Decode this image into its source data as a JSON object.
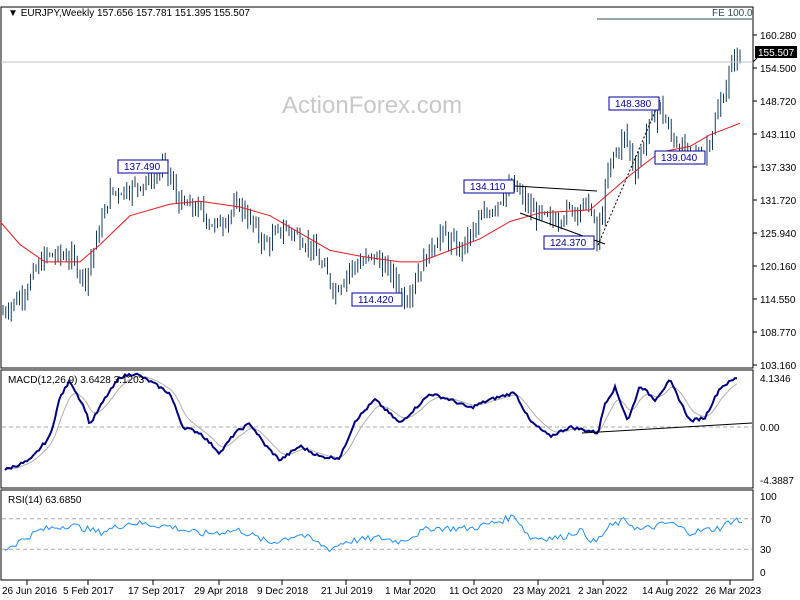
{
  "header": {
    "symbol": "EURJPY,Weekly",
    "ohlc": "157.656 157.781 151.395 155.507",
    "watermark": "ActionForex.com"
  },
  "chart_data": [
    {
      "type": "line",
      "title": "EURJPY Weekly",
      "subtitle": "157.656 157.781 151.395 155.507",
      "y_ticks": [
        "160.280",
        "154.500",
        "148.720",
        "143.110",
        "137.330",
        "131.720",
        "125.940",
        "120.160",
        "114.550",
        "108.770",
        "103.160"
      ],
      "ylim": [
        103.16,
        160.28
      ],
      "last_price": 155.507,
      "last_price_label": "155.507",
      "price_path": [
        [
          0,
          112
        ],
        [
          20,
          115
        ],
        [
          45,
          122
        ],
        [
          70,
          122
        ],
        [
          85,
          118
        ],
        [
          95,
          124
        ],
        [
          110,
          133
        ],
        [
          135,
          134
        ],
        [
          165,
          137.5
        ],
        [
          180,
          131
        ],
        [
          200,
          130
        ],
        [
          215,
          127
        ],
        [
          240,
          131
        ],
        [
          265,
          124
        ],
        [
          285,
          127
        ],
        [
          310,
          124
        ],
        [
          335,
          116
        ],
        [
          350,
          120
        ],
        [
          375,
          122
        ],
        [
          395,
          118
        ],
        [
          405,
          114.4
        ],
        [
          420,
          120
        ],
        [
          440,
          126
        ],
        [
          460,
          123
        ],
        [
          480,
          128
        ],
        [
          505,
          133
        ],
        [
          515,
          134
        ],
        [
          530,
          130
        ],
        [
          550,
          128
        ],
        [
          570,
          130
        ],
        [
          590,
          131
        ],
        [
          597,
          124.4
        ],
        [
          610,
          138
        ],
        [
          625,
          143
        ],
        [
          635,
          137
        ],
        [
          650,
          145
        ],
        [
          660,
          148
        ],
        [
          670,
          143
        ],
        [
          690,
          139
        ],
        [
          705,
          140
        ],
        [
          720,
          148
        ],
        [
          735,
          157
        ],
        [
          742,
          155.5
        ]
      ],
      "moving_average": [
        [
          0,
          128
        ],
        [
          20,
          124
        ],
        [
          45,
          121
        ],
        [
          80,
          121
        ],
        [
          100,
          124
        ],
        [
          130,
          129
        ],
        [
          170,
          131
        ],
        [
          200,
          131.5
        ],
        [
          240,
          130.5
        ],
        [
          270,
          129
        ],
        [
          300,
          126
        ],
        [
          330,
          123
        ],
        [
          360,
          122
        ],
        [
          400,
          121
        ],
        [
          420,
          121
        ],
        [
          450,
          123
        ],
        [
          480,
          125
        ],
        [
          510,
          128
        ],
        [
          540,
          129.5
        ],
        [
          590,
          130
        ],
        [
          610,
          133
        ],
        [
          630,
          136
        ],
        [
          660,
          140
        ],
        [
          690,
          141
        ],
        [
          710,
          143
        ],
        [
          740,
          145
        ]
      ],
      "annotations": [
        "137.490",
        "114.420",
        "134.110",
        "124.370",
        "148.380",
        "139.040",
        "FE 100.0"
      ],
      "x_ticks": [
        "26 Jun 2016",
        "5 Feb 2017",
        "17 Sep 2017",
        "29 Apr 2018",
        "9 Dec 2018",
        "21 Jul 2019",
        "1 Mar 2020",
        "11 Oct 2020",
        "23 May 2021",
        "2 Jan 2022",
        "14 Aug 2022",
        "26 Mar 2023"
      ]
    },
    {
      "type": "line",
      "title": "MACD(12,26,9) 3.6428 3.1203",
      "y_ticks": [
        "4.1346",
        "0.00",
        "-4.3887"
      ],
      "ylim": [
        -4.3887,
        4.1346
      ],
      "macd": [
        [
          5,
          -3.6
        ],
        [
          30,
          -2.8
        ],
        [
          50,
          -0.8
        ],
        [
          60,
          2.5
        ],
        [
          70,
          3.9
        ],
        [
          85,
          1.5
        ],
        [
          90,
          0.2
        ],
        [
          105,
          2.4
        ],
        [
          120,
          4.2
        ],
        [
          135,
          4.5
        ],
        [
          155,
          3.6
        ],
        [
          170,
          2.8
        ],
        [
          183,
          0
        ],
        [
          200,
          -0.5
        ],
        [
          220,
          -2.2
        ],
        [
          235,
          -0.5
        ],
        [
          250,
          0.3
        ],
        [
          265,
          -1.5
        ],
        [
          280,
          -2.8
        ],
        [
          300,
          -1.6
        ],
        [
          320,
          -2.5
        ],
        [
          340,
          -2.6
        ],
        [
          355,
          0.5
        ],
        [
          375,
          2.3
        ],
        [
          400,
          0.3
        ],
        [
          430,
          2.8
        ],
        [
          450,
          2.3
        ],
        [
          470,
          1.6
        ],
        [
          490,
          2.3
        ],
        [
          515,
          2.9
        ],
        [
          530,
          0.5
        ],
        [
          550,
          -0.8
        ],
        [
          570,
          0
        ],
        [
          598,
          -0.5
        ],
        [
          605,
          2
        ],
        [
          615,
          3.3
        ],
        [
          628,
          0.5
        ],
        [
          640,
          3.5
        ],
        [
          655,
          2.3
        ],
        [
          670,
          3.9
        ],
        [
          690,
          0.5
        ],
        [
          705,
          0.8
        ],
        [
          720,
          3.3
        ],
        [
          738,
          4.2
        ]
      ]
    },
    {
      "type": "line",
      "title": "RSI(14) 63.6850",
      "y_ticks": [
        "100",
        "70",
        "30",
        "0"
      ],
      "ylim": [
        0,
        100
      ],
      "rsi": [
        [
          5,
          30
        ],
        [
          40,
          55
        ],
        [
          70,
          62
        ],
        [
          100,
          52
        ],
        [
          130,
          65
        ],
        [
          170,
          60
        ],
        [
          200,
          50
        ],
        [
          240,
          55
        ],
        [
          270,
          38
        ],
        [
          300,
          50
        ],
        [
          330,
          30
        ],
        [
          345,
          40
        ],
        [
          380,
          45
        ],
        [
          400,
          40
        ],
        [
          430,
          58
        ],
        [
          470,
          57
        ],
        [
          500,
          67
        ],
        [
          515,
          74
        ],
        [
          530,
          45
        ],
        [
          560,
          45
        ],
        [
          580,
          55
        ],
        [
          595,
          38
        ],
        [
          610,
          60
        ],
        [
          625,
          68
        ],
        [
          640,
          55
        ],
        [
          670,
          65
        ],
        [
          690,
          52
        ],
        [
          720,
          58
        ],
        [
          735,
          70
        ],
        [
          742,
          64
        ]
      ]
    }
  ],
  "colors": {
    "bars": "#173a5e",
    "ma": "#e31a1c",
    "macd": "#000080",
    "signal": "#b0b0b0",
    "rsi": "#1e90ff",
    "box": "#0000a0"
  }
}
